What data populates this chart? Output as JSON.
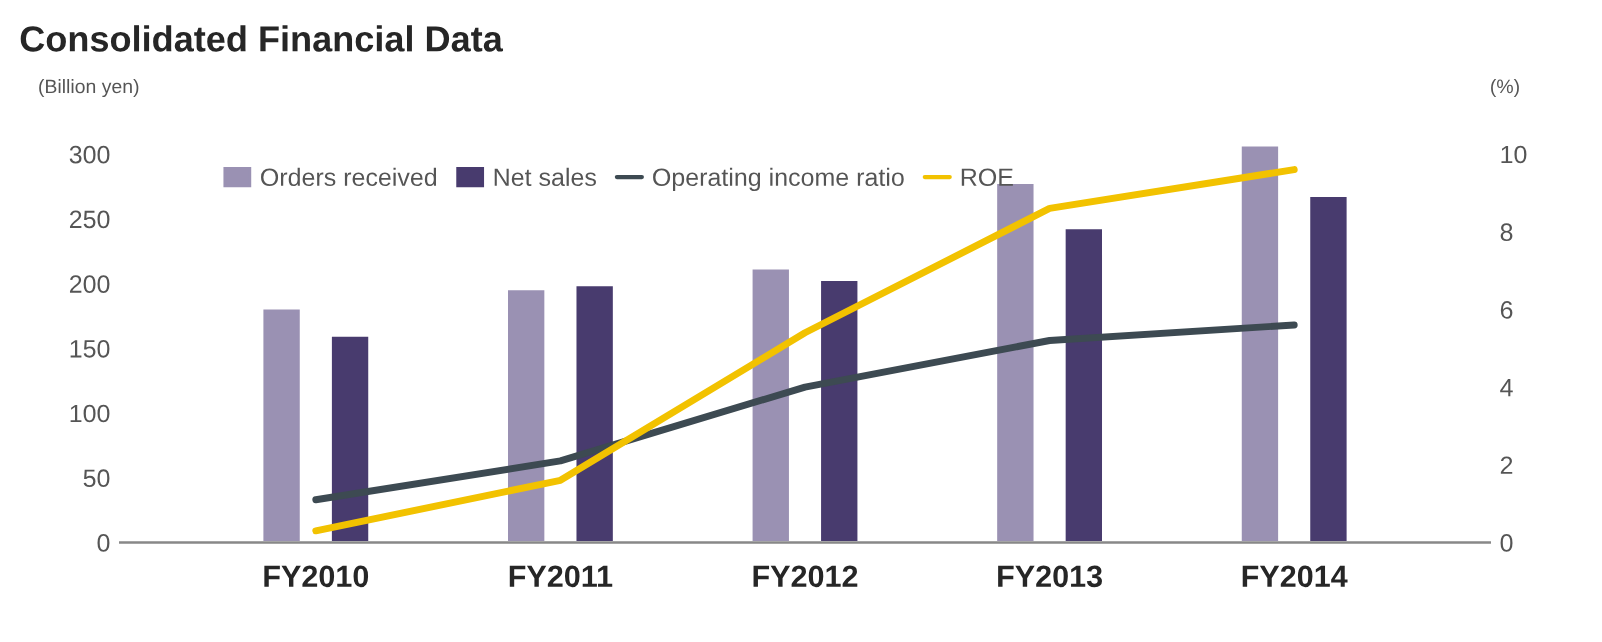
{
  "chart_data": {
    "type": "bar",
    "title": "Consolidated Financial Data",
    "ylabel": "(Billion yen)",
    "y2label": "(%)",
    "categories": [
      "FY2010",
      "FY2011",
      "FY2012",
      "FY2013",
      "FY2014"
    ],
    "series": [
      {
        "name": "Orders received",
        "color": "#9a91b3",
        "values": [
          181,
          196,
          212,
          278,
          307
        ]
      },
      {
        "name": "Net sales",
        "color": "#483b6e",
        "values": [
          160,
          199,
          203,
          243,
          268
        ]
      },
      {
        "name": "Operating income ratio",
        "type": "line",
        "axis": "y2",
        "color": "#3d4a52",
        "values": [
          1.1,
          2.1,
          4.0,
          5.2,
          5.6
        ]
      },
      {
        "name": "ROE",
        "type": "line",
        "axis": "y2",
        "color": "#f2c200",
        "values": [
          0.3,
          1.6,
          5.4,
          8.6,
          9.6
        ]
      }
    ],
    "ylim": [
      0,
      310
    ],
    "yticks": [
      0,
      50,
      100,
      150,
      200,
      250,
      300
    ],
    "y2lim": [
      0,
      10.33
    ],
    "y2ticks": [
      0,
      2,
      4,
      6,
      8,
      10
    ],
    "grid": false,
    "legend": "top",
    "marker": "none",
    "line_style": "solid"
  }
}
